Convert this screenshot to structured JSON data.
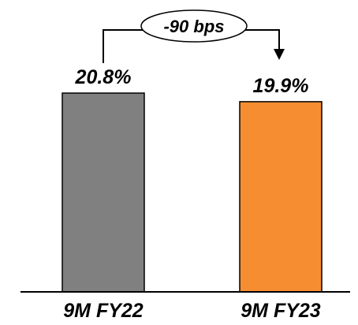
{
  "chart_data": {
    "type": "bar",
    "categories": [
      "9M FY22",
      "9M FY23"
    ],
    "values": [
      20.8,
      19.9
    ],
    "data_labels": [
      "20.8%",
      "19.9%"
    ],
    "colors": [
      "#808080",
      "#f68e31"
    ],
    "annotation": "-90 bps",
    "title": "",
    "xlabel": "",
    "ylabel": "",
    "ylim": [
      0,
      21
    ],
    "grid": false,
    "legend": "none"
  }
}
